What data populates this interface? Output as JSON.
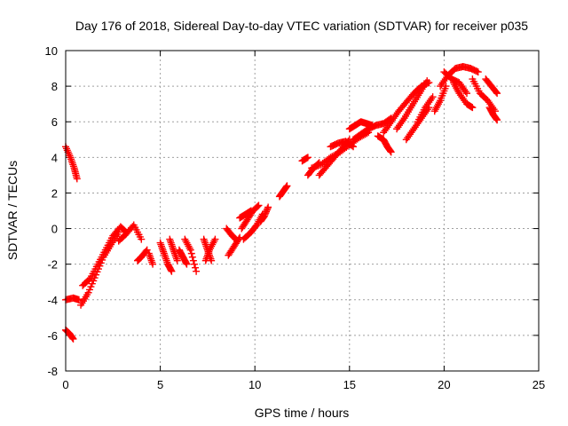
{
  "chart_data": {
    "type": "scatter",
    "title": "Day 176 of 2018, Sidereal Day-to-day VTEC variation (SDTVAR) for receiver p035",
    "xlabel": "GPS time / hours",
    "ylabel": "SDTVAR / TECUs",
    "xlim": [
      0,
      25
    ],
    "ylim": [
      -8,
      10
    ],
    "xticks": [
      0,
      5,
      10,
      15,
      20,
      25
    ],
    "yticks": [
      -8,
      -6,
      -4,
      -2,
      0,
      2,
      4,
      6,
      8,
      10
    ],
    "grid": true,
    "marker": "+",
    "series": [
      {
        "name": "SDTVAR",
        "color": "#ff0000",
        "segments": [
          {
            "x": [
              0.0,
              0.25,
              0.45,
              0.6
            ],
            "y": [
              4.6,
              4.0,
              3.4,
              2.8
            ]
          },
          {
            "x": [
              0.0,
              0.2,
              0.4
            ],
            "y": [
              -5.7,
              -5.9,
              -6.2
            ]
          },
          {
            "x": [
              0.0,
              0.4,
              0.7
            ],
            "y": [
              -4.0,
              -3.9,
              -4.0
            ]
          },
          {
            "x": [
              0.8,
              1.2,
              1.6,
              2.0,
              2.4,
              2.8
            ],
            "y": [
              -4.3,
              -3.6,
              -2.6,
              -1.6,
              -0.9,
              -0.2
            ]
          },
          {
            "x": [
              0.9,
              1.3,
              1.7,
              2.1,
              2.5,
              2.9,
              3.2
            ],
            "y": [
              -3.2,
              -2.8,
              -2.0,
              -1.2,
              -0.4,
              0.1,
              -0.2
            ]
          },
          {
            "x": [
              2.8,
              3.2,
              3.6,
              4.0
            ],
            "y": [
              -0.7,
              -0.3,
              0.2,
              -0.6
            ]
          },
          {
            "x": [
              3.8,
              4.0,
              4.3
            ],
            "y": [
              -1.8,
              -1.6,
              -1.2
            ]
          },
          {
            "x": [
              4.4,
              4.6
            ],
            "y": [
              -1.4,
              -2.0
            ]
          },
          {
            "x": [
              5.0,
              5.2,
              5.4,
              5.6
            ],
            "y": [
              -0.8,
              -1.4,
              -2.0,
              -2.4
            ]
          },
          {
            "x": [
              5.5,
              5.7,
              5.9
            ],
            "y": [
              -0.6,
              -1.2,
              -1.8
            ]
          },
          {
            "x": [
              6.0,
              6.2,
              6.4
            ],
            "y": [
              -1.2,
              -1.6,
              -2.0
            ]
          },
          {
            "x": [
              6.3,
              6.6,
              6.9
            ],
            "y": [
              -0.6,
              -1.2,
              -2.4
            ]
          },
          {
            "x": [
              7.3,
              7.5,
              7.7
            ],
            "y": [
              -0.6,
              -1.2,
              -1.8
            ]
          },
          {
            "x": [
              7.4,
              7.6,
              7.9
            ],
            "y": [
              -1.8,
              -1.2,
              -0.6
            ]
          },
          {
            "x": [
              8.6,
              8.9,
              9.2
            ],
            "y": [
              -1.5,
              -1.0,
              -0.5
            ]
          },
          {
            "x": [
              8.5,
              8.8,
              9.0
            ],
            "y": [
              0.0,
              -0.4,
              -0.6
            ]
          },
          {
            "x": [
              9.3,
              9.6,
              9.9,
              10.2
            ],
            "y": [
              0.0,
              0.5,
              1.0,
              1.3
            ]
          },
          {
            "x": [
              9.4,
              9.8,
              10.1,
              10.4
            ],
            "y": [
              -0.6,
              -0.2,
              0.2,
              0.8
            ]
          },
          {
            "x": [
              9.2,
              9.5,
              9.8
            ],
            "y": [
              0.6,
              0.8,
              1.0
            ]
          },
          {
            "x": [
              10.3,
              10.5,
              10.7
            ],
            "y": [
              0.4,
              0.7,
              1.2
            ]
          },
          {
            "x": [
              11.3,
              11.5,
              11.7
            ],
            "y": [
              1.8,
              2.1,
              2.4
            ]
          },
          {
            "x": [
              12.5,
              12.8
            ],
            "y": [
              3.8,
              4.0
            ]
          },
          {
            "x": [
              12.8,
              13.1,
              13.4
            ],
            "y": [
              3.0,
              3.4,
              3.7
            ]
          },
          {
            "x": [
              13.0,
              13.5,
              14.0,
              14.5,
              15.0,
              15.5,
              16.0
            ],
            "y": [
              3.4,
              3.6,
              4.0,
              4.3,
              4.7,
              5.1,
              5.4
            ]
          },
          {
            "x": [
              13.4,
              13.8,
              14.2,
              14.6,
              15.0
            ],
            "y": [
              3.0,
              3.5,
              4.0,
              4.5,
              5.0
            ]
          },
          {
            "x": [
              14.0,
              14.4,
              14.8,
              15.2
            ],
            "y": [
              4.6,
              4.8,
              4.9,
              4.6
            ]
          },
          {
            "x": [
              15.2,
              15.6,
              16.0,
              16.4,
              16.8,
              17.2
            ],
            "y": [
              5.0,
              5.3,
              5.6,
              5.8,
              5.9,
              6.2
            ]
          },
          {
            "x": [
              15.0,
              15.3,
              15.6,
              15.9,
              16.2
            ],
            "y": [
              5.6,
              5.8,
              6.0,
              5.9,
              5.8
            ]
          },
          {
            "x": [
              16.5,
              16.8,
              17.0,
              17.2
            ],
            "y": [
              5.2,
              5.0,
              4.6,
              4.3
            ]
          },
          {
            "x": [
              16.8,
              17.2,
              17.6,
              18.0,
              18.4,
              18.8,
              19.2
            ],
            "y": [
              5.4,
              6.0,
              6.6,
              7.1,
              7.6,
              8.0,
              8.2
            ]
          },
          {
            "x": [
              17.5,
              17.9,
              18.3,
              18.7,
              19.1
            ],
            "y": [
              5.6,
              6.2,
              6.9,
              7.6,
              8.3
            ]
          },
          {
            "x": [
              18.0,
              18.4,
              18.8,
              19.2
            ],
            "y": [
              5.0,
              5.6,
              6.2,
              6.8
            ]
          },
          {
            "x": [
              18.6,
              19.0,
              19.4
            ],
            "y": [
              6.0,
              6.8,
              7.4
            ]
          },
          {
            "x": [
              19.5,
              19.8,
              20.1
            ],
            "y": [
              6.6,
              7.2,
              8.0
            ]
          },
          {
            "x": [
              19.8,
              20.2,
              20.6,
              21.0,
              21.4,
              21.8
            ],
            "y": [
              8.0,
              8.6,
              9.0,
              9.1,
              9.0,
              8.8
            ]
          },
          {
            "x": [
              20.0,
              20.4,
              20.8,
              21.2
            ],
            "y": [
              8.8,
              8.4,
              8.2,
              7.6
            ]
          },
          {
            "x": [
              20.5,
              20.8,
              21.2,
              21.5
            ],
            "y": [
              8.2,
              7.6,
              7.0,
              6.8
            ]
          },
          {
            "x": [
              21.5,
              21.9,
              22.3,
              22.7
            ],
            "y": [
              8.4,
              7.6,
              7.2,
              6.6
            ]
          },
          {
            "x": [
              22.2,
              22.5,
              22.8
            ],
            "y": [
              8.4,
              8.0,
              7.6
            ]
          },
          {
            "x": [
              22.4,
              22.6,
              22.8
            ],
            "y": [
              6.8,
              6.4,
              6.1
            ]
          }
        ]
      }
    ]
  }
}
